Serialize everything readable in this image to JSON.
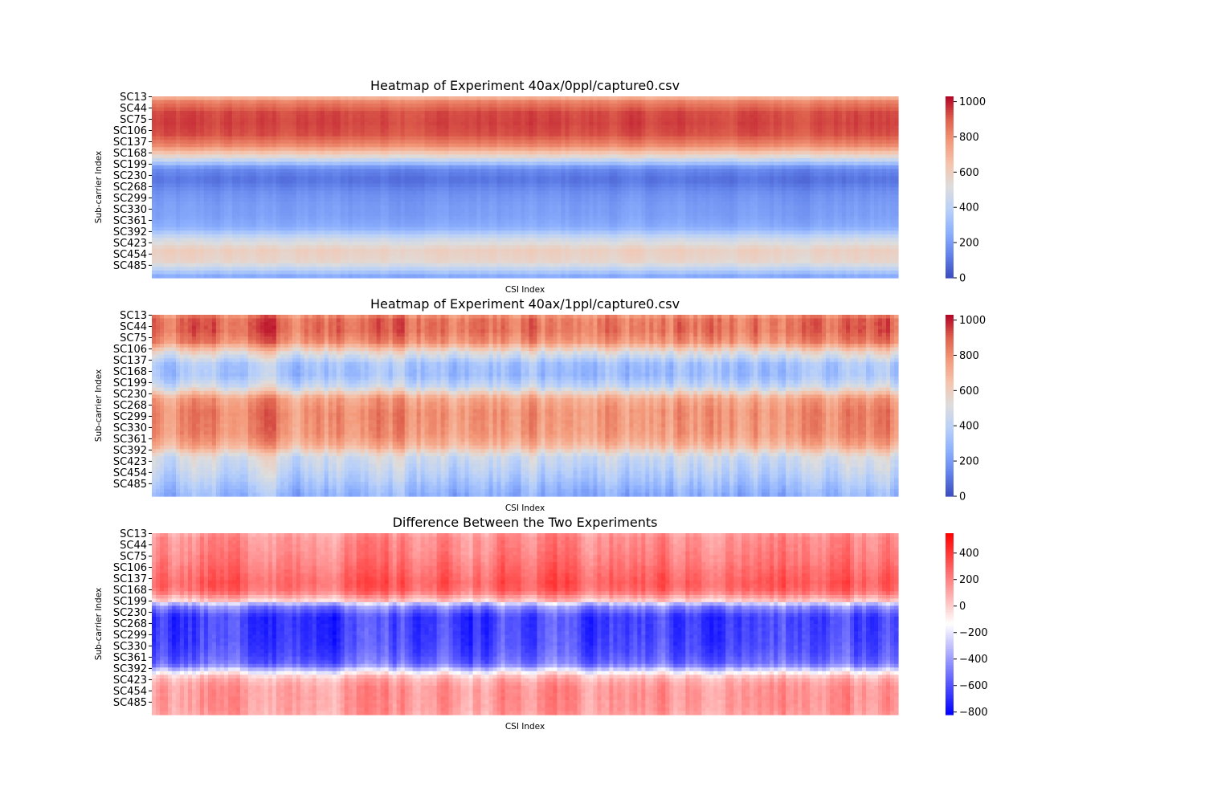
{
  "chart_data": [
    {
      "type": "heatmap",
      "title": "Heatmap of Experiment 40ax/0ppl/capture0.csv",
      "xlabel": "CSI Index",
      "ylabel": "Sub-carrier Index",
      "y_tick_labels": [
        "SC13",
        "SC44",
        "SC75",
        "SC106",
        "SC137",
        "SC168",
        "SC199",
        "SC230",
        "SC268",
        "SC299",
        "SC330",
        "SC361",
        "SC392",
        "SC423",
        "SC454",
        "SC485"
      ],
      "colormap": "coolwarm",
      "colorbar": {
        "range": [
          0,
          1030
        ],
        "ticks": [
          "0",
          "200",
          "400",
          "600",
          "800",
          "1000"
        ]
      },
      "row_profile": [
        {
          "sc": 0,
          "value": 650
        },
        {
          "sc": 13,
          "value": 820
        },
        {
          "sc": 44,
          "value": 930
        },
        {
          "sc": 75,
          "value": 940
        },
        {
          "sc": 106,
          "value": 920
        },
        {
          "sc": 137,
          "value": 800
        },
        {
          "sc": 168,
          "value": 520
        },
        {
          "sc": 199,
          "value": 150
        },
        {
          "sc": 230,
          "value": 90
        },
        {
          "sc": 268,
          "value": 170
        },
        {
          "sc": 299,
          "value": 200
        },
        {
          "sc": 330,
          "value": 210
        },
        {
          "sc": 361,
          "value": 250
        },
        {
          "sc": 392,
          "value": 460
        },
        {
          "sc": 423,
          "value": 590
        },
        {
          "sc": 454,
          "value": 560
        },
        {
          "sc": 480,
          "value": 380
        },
        {
          "sc": 500,
          "value": 200
        }
      ],
      "column_variation": 25
    },
    {
      "type": "heatmap",
      "title": "Heatmap of Experiment 40ax/1ppl/capture0.csv",
      "xlabel": "CSI Index",
      "ylabel": "Sub-carrier Index",
      "y_tick_labels": [
        "SC13",
        "SC44",
        "SC75",
        "SC106",
        "SC137",
        "SC168",
        "SC199",
        "SC230",
        "SC268",
        "SC299",
        "SC330",
        "SC361",
        "SC392",
        "SC423",
        "SC454",
        "SC485"
      ],
      "colormap": "coolwarm",
      "colorbar": {
        "range": [
          0,
          1030
        ],
        "ticks": [
          "0",
          "200",
          "400",
          "600",
          "800",
          "1000"
        ]
      },
      "row_profile": [
        {
          "sc": 0,
          "value": 780
        },
        {
          "sc": 13,
          "value": 860
        },
        {
          "sc": 44,
          "value": 870
        },
        {
          "sc": 75,
          "value": 800
        },
        {
          "sc": 106,
          "value": 520
        },
        {
          "sc": 137,
          "value": 330
        },
        {
          "sc": 168,
          "value": 320
        },
        {
          "sc": 199,
          "value": 450
        },
        {
          "sc": 230,
          "value": 740
        },
        {
          "sc": 268,
          "value": 800
        },
        {
          "sc": 299,
          "value": 790
        },
        {
          "sc": 330,
          "value": 780
        },
        {
          "sc": 361,
          "value": 700
        },
        {
          "sc": 392,
          "value": 470
        },
        {
          "sc": 423,
          "value": 420
        },
        {
          "sc": 454,
          "value": 360
        },
        {
          "sc": 480,
          "value": 300
        },
        {
          "sc": 500,
          "value": 260
        }
      ],
      "column_variation": 90
    },
    {
      "type": "heatmap",
      "title": "Difference Between the Two Experiments",
      "xlabel": "CSI Index",
      "ylabel": "Sub-carrier Index",
      "y_tick_labels": [
        "SC13",
        "SC44",
        "SC75",
        "SC106",
        "SC137",
        "SC168",
        "SC199",
        "SC230",
        "SC268",
        "SC299",
        "SC330",
        "SC361",
        "SC392",
        "SC423",
        "SC454",
        "SC485"
      ],
      "colormap": "bwr",
      "colorbar": {
        "range": [
          -820,
          550
        ],
        "ticks": [
          "−800",
          "−600",
          "−400",
          "−200",
          "0",
          "200",
          "400"
        ]
      },
      "row_profile": [
        {
          "sc": 0,
          "value": 120
        },
        {
          "sc": 13,
          "value": 170
        },
        {
          "sc": 44,
          "value": 190
        },
        {
          "sc": 75,
          "value": 220
        },
        {
          "sc": 106,
          "value": 260
        },
        {
          "sc": 137,
          "value": 300
        },
        {
          "sc": 160,
          "value": 260
        },
        {
          "sc": 185,
          "value": 20
        },
        {
          "sc": 199,
          "value": -420
        },
        {
          "sc": 230,
          "value": -650
        },
        {
          "sc": 268,
          "value": -640
        },
        {
          "sc": 299,
          "value": -630
        },
        {
          "sc": 330,
          "value": -600
        },
        {
          "sc": 361,
          "value": -520
        },
        {
          "sc": 385,
          "value": -120
        },
        {
          "sc": 398,
          "value": 60
        },
        {
          "sc": 423,
          "value": 140
        },
        {
          "sc": 454,
          "value": 150
        },
        {
          "sc": 485,
          "value": 140
        },
        {
          "sc": 500,
          "value": 120
        }
      ],
      "column_variation": 110
    }
  ]
}
